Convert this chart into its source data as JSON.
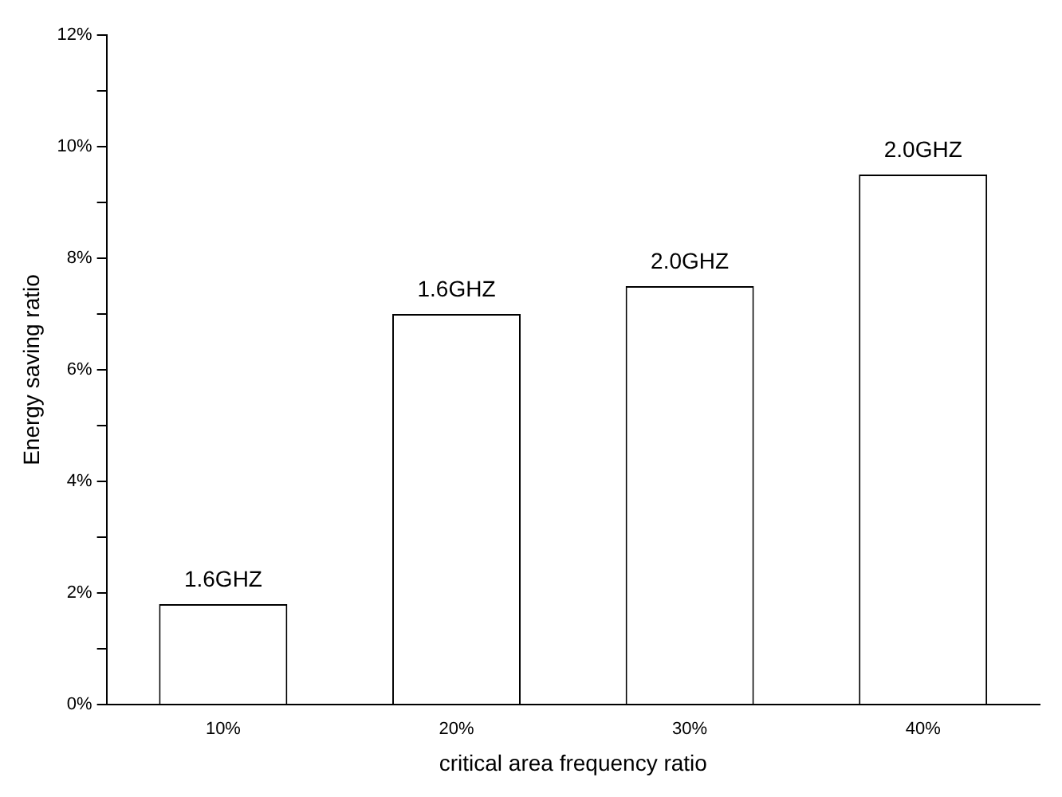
{
  "chart_data": {
    "type": "bar",
    "xlabel": "critical area frequency ratio",
    "ylabel": "Energy saving ratio",
    "categories": [
      "10%",
      "20%",
      "30%",
      "40%"
    ],
    "values": [
      1.8,
      7.0,
      7.5,
      9.5
    ],
    "annotations": [
      {
        "text": "1.6GHZ",
        "x": "10%",
        "y": 1.8
      },
      {
        "text": "1.6GHZ",
        "x": "20%",
        "y": 7.0
      },
      {
        "text": "2.0GHZ",
        "x": "30%",
        "y": 7.5
      },
      {
        "text": "2.0GHZ",
        "x": "40%",
        "y": 9.5
      }
    ],
    "color": "#ffffff",
    "ylim": [
      0,
      12
    ],
    "yticks": [
      {
        "value": 0,
        "label": "0%"
      },
      {
        "value": 1,
        "label": null
      },
      {
        "value": 2,
        "label": "2%"
      },
      {
        "value": 3,
        "label": null
      },
      {
        "value": 4,
        "label": "4%"
      },
      {
        "value": 5,
        "label": null
      },
      {
        "value": 6,
        "label": "6%"
      },
      {
        "value": 7,
        "label": null
      },
      {
        "value": 8,
        "label": "8%"
      },
      {
        "value": 9,
        "label": null
      },
      {
        "value": 10,
        "label": "10%"
      },
      {
        "value": 11,
        "label": null
      },
      {
        "value": 12,
        "label": "12%"
      }
    ],
    "grid": false,
    "legend": false
  }
}
